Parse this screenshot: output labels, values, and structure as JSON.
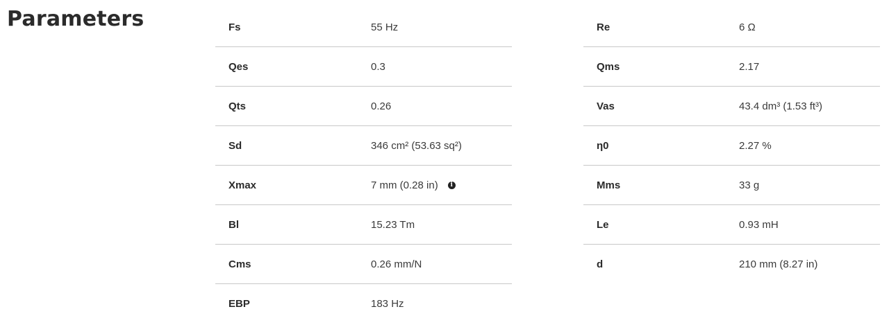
{
  "title": "Parameters",
  "left": [
    {
      "label": "Fs",
      "value": "55 Hz"
    },
    {
      "label": "Qes",
      "value": "0.3"
    },
    {
      "label": "Qts",
      "value": "0.26"
    },
    {
      "label": "Sd",
      "value": "346 cm² (53.63 sq²)"
    },
    {
      "label": "Xmax",
      "value": "7 mm (0.28 in)",
      "info_icon": "i"
    },
    {
      "label": "Bl",
      "value": "15.23 Tm"
    },
    {
      "label": "Cms",
      "value": "0.26 mm/N"
    },
    {
      "label": "EBP",
      "value": "183 Hz"
    }
  ],
  "right": [
    {
      "label": "Re",
      "value": "6 Ω"
    },
    {
      "label": "Qms",
      "value": "2.17"
    },
    {
      "label": "Vas",
      "value": "43.4 dm³ (1.53 ft³)"
    },
    {
      "label": "η0",
      "value": "2.27 %"
    },
    {
      "label": "Mms",
      "value": "33 g"
    },
    {
      "label": "Le",
      "value": "0.93 mH"
    },
    {
      "label": "d",
      "value": "210 mm (8.27 in)"
    }
  ]
}
